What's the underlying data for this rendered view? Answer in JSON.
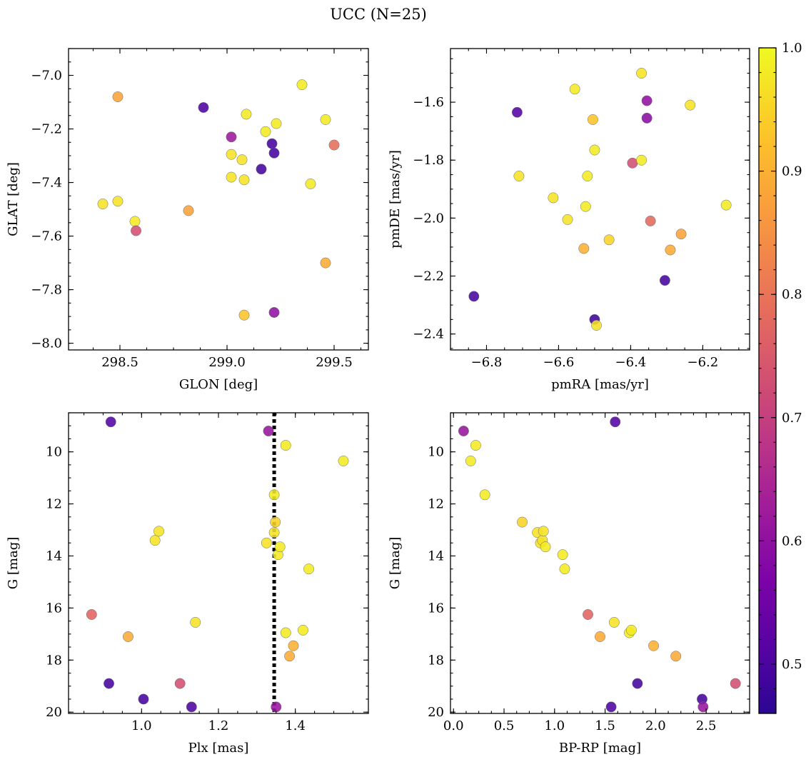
{
  "figure": {
    "title": "UCC (N=25)",
    "colormap": "plasma",
    "colorbar": {
      "min": 0.46,
      "max": 1.0,
      "ticks": [
        0.5,
        0.6,
        0.7,
        0.8,
        0.9,
        1.0
      ],
      "tick_labels": [
        "0.5",
        "0.6",
        "0.7",
        "0.8",
        "0.9",
        "1.0"
      ]
    }
  },
  "chart_data": [
    {
      "type": "scatter",
      "id": "glon-glat",
      "xlabel": "GLON [deg]",
      "ylabel": "GLAT [deg]",
      "xlim": [
        298.26,
        299.66
      ],
      "ylim": [
        -8.025,
        -6.9
      ],
      "y_inverted": false,
      "xticks": [
        298.5,
        299.0,
        299.5
      ],
      "xtick_labels": [
        "298.5",
        "299.0",
        "299.5"
      ],
      "yticks": [
        -8.0,
        -7.8,
        -7.6,
        -7.4,
        -7.2,
        -7.0
      ],
      "ytick_labels": [
        "−8.0",
        "−7.8",
        "−7.6",
        "−7.4",
        "−7.2",
        "−7.0"
      ],
      "points": [
        {
          "x": 298.42,
          "y": -7.48,
          "c": 0.97
        },
        {
          "x": 298.49,
          "y": -7.08,
          "c": 0.88
        },
        {
          "x": 298.49,
          "y": -7.47,
          "c": 0.97
        },
        {
          "x": 298.57,
          "y": -7.545,
          "c": 0.98
        },
        {
          "x": 298.575,
          "y": -7.58,
          "c": 0.73
        },
        {
          "x": 298.82,
          "y": -7.505,
          "c": 0.88
        },
        {
          "x": 298.89,
          "y": -7.12,
          "c": 0.5
        },
        {
          "x": 299.02,
          "y": -7.23,
          "c": 0.62
        },
        {
          "x": 299.02,
          "y": -7.295,
          "c": 0.97
        },
        {
          "x": 299.02,
          "y": -7.38,
          "c": 0.97
        },
        {
          "x": 299.07,
          "y": -7.315,
          "c": 0.97
        },
        {
          "x": 299.08,
          "y": -7.39,
          "c": 0.97
        },
        {
          "x": 299.08,
          "y": -7.895,
          "c": 0.93
        },
        {
          "x": 299.09,
          "y": -7.145,
          "c": 0.98
        },
        {
          "x": 299.16,
          "y": -7.35,
          "c": 0.49
        },
        {
          "x": 299.18,
          "y": -7.21,
          "c": 0.98
        },
        {
          "x": 299.21,
          "y": -7.255,
          "c": 0.49
        },
        {
          "x": 299.22,
          "y": -7.29,
          "c": 0.49
        },
        {
          "x": 299.22,
          "y": -7.885,
          "c": 0.6
        },
        {
          "x": 299.23,
          "y": -7.18,
          "c": 0.98
        },
        {
          "x": 299.35,
          "y": -7.035,
          "c": 0.98
        },
        {
          "x": 299.39,
          "y": -7.405,
          "c": 0.98
        },
        {
          "x": 299.46,
          "y": -7.165,
          "c": 0.98
        },
        {
          "x": 299.46,
          "y": -7.7,
          "c": 0.89
        },
        {
          "x": 299.5,
          "y": -7.26,
          "c": 0.79
        }
      ]
    },
    {
      "type": "scatter",
      "id": "pmra-pmde",
      "xlabel": "pmRA [mas/yr]",
      "ylabel": "pmDE [mas/yr]",
      "xlim": [
        -6.9,
        -6.07
      ],
      "ylim": [
        -2.455,
        -1.415
      ],
      "y_inverted": false,
      "xticks": [
        -6.8,
        -6.6,
        -6.4,
        -6.2
      ],
      "xtick_labels": [
        "−6.8",
        "−6.6",
        "−6.4",
        "−6.2"
      ],
      "yticks": [
        -2.4,
        -2.2,
        -2.0,
        -1.8,
        -1.6
      ],
      "ytick_labels": [
        "−2.4",
        "−2.2",
        "−2.0",
        "−1.8",
        "−1.6"
      ],
      "points": [
        {
          "x": -6.835,
          "y": -2.27,
          "c": 0.49
        },
        {
          "x": -6.715,
          "y": -1.635,
          "c": 0.51
        },
        {
          "x": -6.71,
          "y": -1.855,
          "c": 0.97
        },
        {
          "x": -6.615,
          "y": -1.93,
          "c": 0.97
        },
        {
          "x": -6.575,
          "y": -2.005,
          "c": 0.97
        },
        {
          "x": -6.555,
          "y": -1.555,
          "c": 0.98
        },
        {
          "x": -6.53,
          "y": -2.105,
          "c": 0.9
        },
        {
          "x": -6.525,
          "y": -1.96,
          "c": 0.98
        },
        {
          "x": -6.52,
          "y": -1.855,
          "c": 0.98
        },
        {
          "x": -6.505,
          "y": -1.66,
          "c": 0.93
        },
        {
          "x": -6.5,
          "y": -1.765,
          "c": 0.98
        },
        {
          "x": -6.5,
          "y": -2.35,
          "c": 0.48
        },
        {
          "x": -6.495,
          "y": -2.37,
          "c": 0.97
        },
        {
          "x": -6.46,
          "y": -2.075,
          "c": 0.95
        },
        {
          "x": -6.395,
          "y": -1.81,
          "c": 0.73
        },
        {
          "x": -6.37,
          "y": -1.5,
          "c": 0.97
        },
        {
          "x": -6.37,
          "y": -1.8,
          "c": 0.98
        },
        {
          "x": -6.355,
          "y": -1.595,
          "c": 0.6
        },
        {
          "x": -6.355,
          "y": -1.655,
          "c": 0.59
        },
        {
          "x": -6.345,
          "y": -2.01,
          "c": 0.78
        },
        {
          "x": -6.305,
          "y": -2.215,
          "c": 0.49
        },
        {
          "x": -6.29,
          "y": -2.11,
          "c": 0.89
        },
        {
          "x": -6.26,
          "y": -2.055,
          "c": 0.88
        },
        {
          "x": -6.235,
          "y": -1.61,
          "c": 0.97
        },
        {
          "x": -6.135,
          "y": -1.955,
          "c": 0.98
        }
      ]
    },
    {
      "type": "scatter",
      "id": "plx-g",
      "xlabel": "Plx [mas]",
      "ylabel": "G [mag]",
      "xlim": [
        0.81,
        1.59
      ],
      "ylim": [
        8.5,
        20.05
      ],
      "y_inverted": true,
      "xticks": [
        1.0,
        1.2,
        1.4
      ],
      "xtick_labels": [
        "1.0",
        "1.2",
        "1.4"
      ],
      "yticks": [
        10,
        12,
        14,
        16,
        18,
        20
      ],
      "ytick_labels": [
        "10",
        "12",
        "14",
        "16",
        "18",
        "20"
      ],
      "vline": {
        "x": 1.345,
        "style": "dotted"
      },
      "points": [
        {
          "x": 0.87,
          "y": 16.25,
          "c": 0.77
        },
        {
          "x": 0.915,
          "y": 18.9,
          "c": 0.49
        },
        {
          "x": 0.92,
          "y": 8.85,
          "c": 0.51
        },
        {
          "x": 0.965,
          "y": 17.1,
          "c": 0.89
        },
        {
          "x": 1.005,
          "y": 19.5,
          "c": 0.49
        },
        {
          "x": 1.035,
          "y": 13.4,
          "c": 0.97
        },
        {
          "x": 1.045,
          "y": 13.05,
          "c": 0.97
        },
        {
          "x": 1.1,
          "y": 18.9,
          "c": 0.73
        },
        {
          "x": 1.13,
          "y": 19.8,
          "c": 0.5
        },
        {
          "x": 1.14,
          "y": 16.55,
          "c": 0.97
        },
        {
          "x": 1.325,
          "y": 13.5,
          "c": 0.97
        },
        {
          "x": 1.33,
          "y": 9.2,
          "c": 0.61
        },
        {
          "x": 1.345,
          "y": 11.65,
          "c": 0.98
        },
        {
          "x": 1.345,
          "y": 13.1,
          "c": 0.97
        },
        {
          "x": 1.348,
          "y": 12.7,
          "c": 0.95
        },
        {
          "x": 1.35,
          "y": 19.8,
          "c": 0.61
        },
        {
          "x": 1.355,
          "y": 13.95,
          "c": 0.98
        },
        {
          "x": 1.36,
          "y": 13.65,
          "c": 0.98
        },
        {
          "x": 1.375,
          "y": 9.75,
          "c": 0.98
        },
        {
          "x": 1.375,
          "y": 16.95,
          "c": 0.98
        },
        {
          "x": 1.385,
          "y": 17.85,
          "c": 0.89
        },
        {
          "x": 1.395,
          "y": 17.45,
          "c": 0.9
        },
        {
          "x": 1.42,
          "y": 16.85,
          "c": 0.98
        },
        {
          "x": 1.435,
          "y": 14.5,
          "c": 0.98
        },
        {
          "x": 1.525,
          "y": 10.35,
          "c": 0.98
        }
      ]
    },
    {
      "type": "scatter",
      "id": "bprp-g",
      "xlabel": "BP-RP [mag]",
      "ylabel": "G [mag]",
      "xlim": [
        -0.03,
        2.93
      ],
      "ylim": [
        8.5,
        20.05
      ],
      "y_inverted": true,
      "xticks": [
        0.0,
        0.5,
        1.0,
        1.5,
        2.0,
        2.5
      ],
      "xtick_labels": [
        "0.0",
        "0.5",
        "1.0",
        "1.5",
        "2.0",
        "2.5"
      ],
      "yticks": [
        10,
        12,
        14,
        16,
        18,
        20
      ],
      "ytick_labels": [
        "10",
        "12",
        "14",
        "16",
        "18",
        "20"
      ],
      "points": [
        {
          "x": 0.1,
          "y": 9.2,
          "c": 0.61
        },
        {
          "x": 0.17,
          "y": 10.35,
          "c": 0.98
        },
        {
          "x": 0.22,
          "y": 9.75,
          "c": 0.98
        },
        {
          "x": 0.31,
          "y": 11.65,
          "c": 0.98
        },
        {
          "x": 0.68,
          "y": 12.7,
          "c": 0.95
        },
        {
          "x": 0.83,
          "y": 13.1,
          "c": 0.97
        },
        {
          "x": 0.86,
          "y": 13.5,
          "c": 0.97
        },
        {
          "x": 0.88,
          "y": 13.4,
          "c": 0.97
        },
        {
          "x": 0.89,
          "y": 13.05,
          "c": 0.97
        },
        {
          "x": 0.91,
          "y": 13.65,
          "c": 0.98
        },
        {
          "x": 1.08,
          "y": 13.95,
          "c": 0.98
        },
        {
          "x": 1.1,
          "y": 14.5,
          "c": 0.98
        },
        {
          "x": 1.33,
          "y": 16.25,
          "c": 0.77
        },
        {
          "x": 1.45,
          "y": 17.1,
          "c": 0.89
        },
        {
          "x": 1.56,
          "y": 19.8,
          "c": 0.5
        },
        {
          "x": 1.59,
          "y": 16.55,
          "c": 0.97
        },
        {
          "x": 1.6,
          "y": 8.85,
          "c": 0.51
        },
        {
          "x": 1.74,
          "y": 16.95,
          "c": 0.98
        },
        {
          "x": 1.76,
          "y": 16.85,
          "c": 0.98
        },
        {
          "x": 1.82,
          "y": 18.9,
          "c": 0.49
        },
        {
          "x": 1.98,
          "y": 17.45,
          "c": 0.9
        },
        {
          "x": 2.2,
          "y": 17.85,
          "c": 0.89
        },
        {
          "x": 2.46,
          "y": 19.5,
          "c": 0.49
        },
        {
          "x": 2.47,
          "y": 19.8,
          "c": 0.61
        },
        {
          "x": 2.79,
          "y": 18.9,
          "c": 0.73
        }
      ]
    }
  ]
}
